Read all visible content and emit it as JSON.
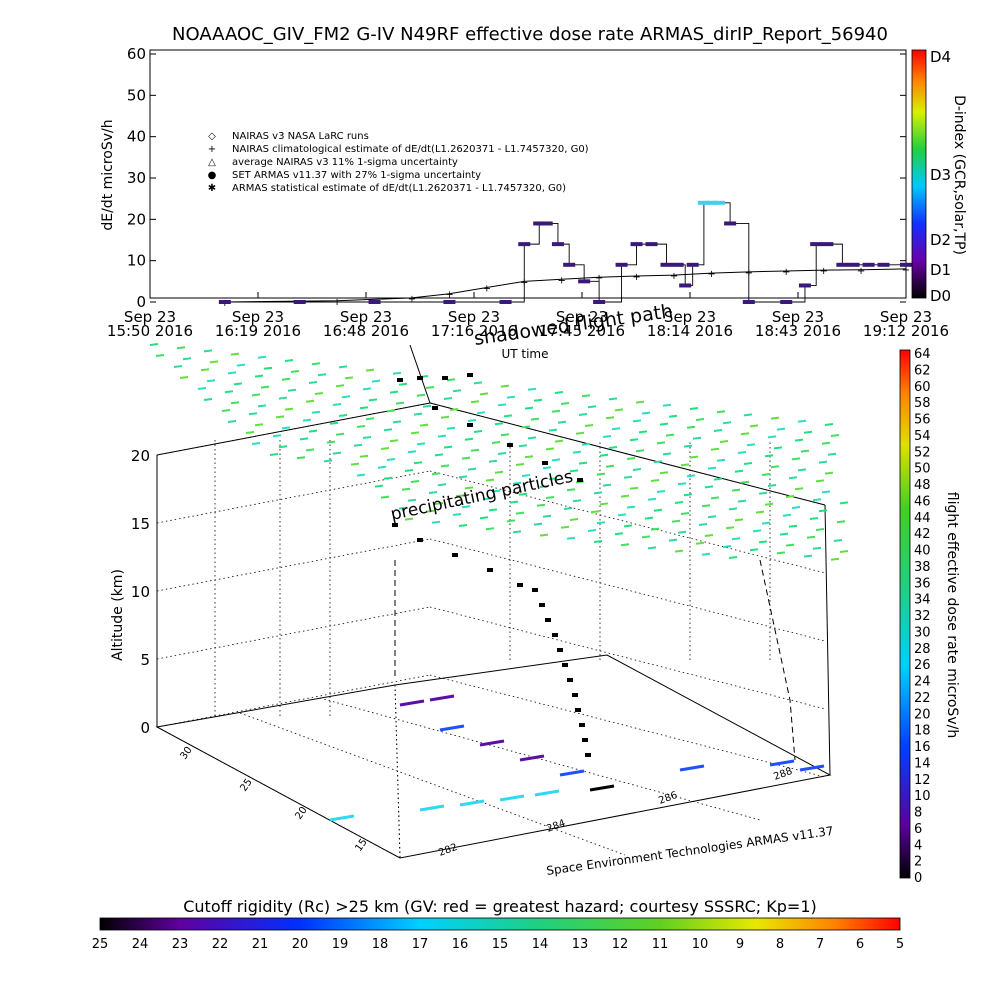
{
  "top_chart": {
    "title": "NOAAAOC_GIV_FM2 G-IV    N49RF   effective dose rate ARMAS_dirIP_Report_56940",
    "ylabel": "dE/dt microSv/h",
    "xlabel": "UT time",
    "right_label": "D-index (GCR,solar,TP)",
    "d_ticks": [
      "D4",
      "D3",
      "D2",
      "D1",
      "D0"
    ],
    "legend": [
      {
        "sym": "◇",
        "text": "NAIRAS v3 NASA LaRC runs"
      },
      {
        "sym": "+",
        "text": "NAIRAS climatological estimate of dE/dt(L1.2620371 - L1.7457320, G0)"
      },
      {
        "sym": "△",
        "text": "average NAIRAS v3 11% 1-sigma uncertainty"
      },
      {
        "sym": "●",
        "text": "SET ARMAS v11.37 with 27% 1-sigma uncertainty"
      },
      {
        "sym": "✱",
        "text": "ARMAS statistical estimate of dE/dt(L1.2620371 - L1.7457320, G0)"
      }
    ],
    "colors": {
      "armas_markers": "#3a1a78",
      "armas_line": "#000000",
      "armas_bright": "#3dd0f0"
    }
  },
  "chart_data": [
    {
      "type": "line",
      "title": "NOAAAOC_GIV_FM2 G-IV    N49RF   effective dose rate ARMAS_dirIP_Report_56940",
      "xlabel": "UT time",
      "ylabel": "dE/dt microSv/h",
      "x_tick_labels": [
        {
          "line1": "Sep 23",
          "line2": "15:50 2016"
        },
        {
          "line1": "Sep 23",
          "line2": "16:19 2016"
        },
        {
          "line1": "Sep 23",
          "line2": "16:48 2016"
        },
        {
          "line1": "Sep 23",
          "line2": "17:16 2016"
        },
        {
          "line1": "Sep 23",
          "line2": "17:45 2016"
        },
        {
          "line1": "Sep 23",
          "line2": "18:14 2016"
        },
        {
          "line1": "Sep 23",
          "line2": "18:43 2016"
        },
        {
          "line1": "Sep 23",
          "line2": "19:12 2016"
        }
      ],
      "y_ticks": [
        0,
        10,
        20,
        30,
        40,
        50,
        60
      ],
      "ylim": [
        0,
        60
      ],
      "x_range": [
        "15:50",
        "19:12"
      ],
      "overlay_text": "shadowed flight path",
      "series": [
        {
          "name": "SET ARMAS v11.37 with 27% 1-sigma uncertainty",
          "x": [
            "16:10",
            "16:30",
            "16:50",
            "17:10",
            "17:25",
            "17:30",
            "17:34",
            "17:36",
            "17:39",
            "17:42",
            "17:46",
            "17:50",
            "17:56",
            "18:00",
            "18:04",
            "18:08",
            "18:11",
            "18:13",
            "18:15",
            "18:18",
            "18:20",
            "18:22",
            "18:25",
            "18:30",
            "18:40",
            "18:45",
            "18:48",
            "18:51",
            "18:55",
            "18:58",
            "19:02",
            "19:06",
            "19:12"
          ],
          "y": [
            0,
            0,
            0,
            0,
            0,
            14,
            19,
            19,
            14,
            9,
            5,
            0,
            9,
            14,
            14,
            9,
            9,
            4,
            9,
            24,
            24,
            24,
            19,
            0,
            0,
            4,
            14,
            14,
            9,
            9,
            9,
            9,
            9
          ]
        },
        {
          "name": "NAIRAS climatological estimate of dE/dt(L1.2620371 - L1.7457320, G0)",
          "x": [
            "16:10",
            "16:40",
            "17:00",
            "17:10",
            "17:20",
            "17:30",
            "17:40",
            "17:50",
            "18:00",
            "18:10",
            "18:20",
            "18:30",
            "18:40",
            "18:50",
            "19:00",
            "19:12"
          ],
          "y": [
            0,
            0.3,
            1,
            2,
            3.5,
            5,
            5.5,
            6,
            6.3,
            6.5,
            7,
            7.3,
            7.5,
            7.7,
            7.8,
            8
          ]
        }
      ]
    },
    {
      "type": "scatter",
      "title": "",
      "xlabel": "",
      "ylabel": "Altitude (km)",
      "z_ticks": [
        0,
        5,
        10,
        15,
        20
      ],
      "zlim": [
        0,
        22
      ],
      "lat_ticks": [
        15,
        20,
        25,
        30
      ],
      "lon_ticks": [
        282,
        284,
        286,
        288
      ],
      "annotation": "precipitating particles",
      "credit": "Space Environment Technologies ARMAS v11.37",
      "colorbar_label": "flight effective dose rate microSv/h",
      "colorbar_ticks": [
        0,
        2,
        4,
        6,
        8,
        10,
        12,
        14,
        16,
        18,
        20,
        22,
        24,
        26,
        28,
        30,
        32,
        34,
        36,
        38,
        40,
        42,
        44,
        46,
        48,
        50,
        52,
        54,
        56,
        58,
        60,
        62,
        64
      ],
      "colorbar_range": [
        0,
        64
      ]
    }
  ],
  "bottom_bar": {
    "label": "Cutoff rigidity (Rc) >25 km (GV: red = greatest hazard; courtesy SSSRC; Kp=1)",
    "ticks": [
      "25",
      "24",
      "23",
      "22",
      "21",
      "20",
      "19",
      "18",
      "17",
      "16",
      "15",
      "14",
      "13",
      "12",
      "11",
      "10",
      "9",
      "8",
      "7",
      "6",
      "5"
    ]
  }
}
